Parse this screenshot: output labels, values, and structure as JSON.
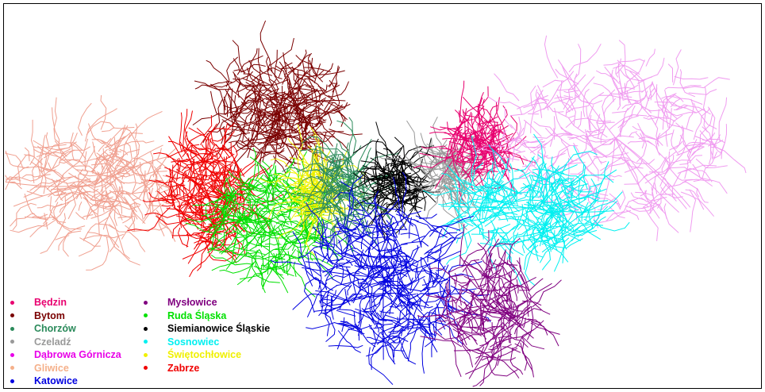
{
  "map": {
    "cities": [
      {
        "name": "Będzin",
        "color": "#e8006f"
      },
      {
        "name": "Bytom",
        "color": "#7a0000"
      },
      {
        "name": "Chorzów",
        "color": "#2a8a5a"
      },
      {
        "name": "Czeladź",
        "color": "#999999"
      },
      {
        "name": "Dąbrowa Górnicza",
        "color": "#e800e8"
      },
      {
        "name": "Gliwice",
        "color": "#f5b08a"
      },
      {
        "name": "Katowice",
        "color": "#0000e0"
      },
      {
        "name": "Mysłowice",
        "color": "#800080"
      },
      {
        "name": "Ruda Śląska",
        "color": "#00e000"
      },
      {
        "name": "Siemianowice Śląskie",
        "color": "#000000"
      },
      {
        "name": "Sosnowiec",
        "color": "#00f0f0"
      },
      {
        "name": "Świętochłowice",
        "color": "#f0f000"
      },
      {
        "name": "Zabrze",
        "color": "#f00000"
      }
    ],
    "network_colors": {
      "gliwice": "#f0a090",
      "dabrowa": "#f09cf0"
    }
  }
}
